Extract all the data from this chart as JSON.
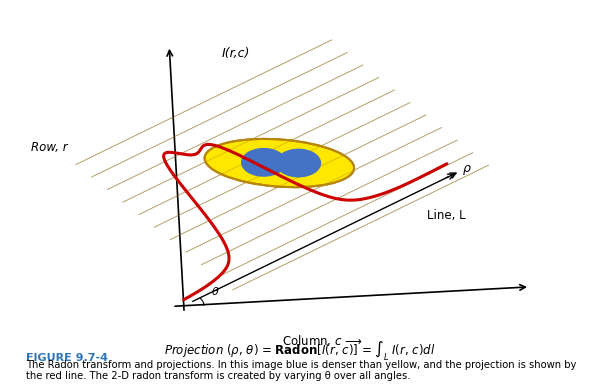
{
  "title": "FIGURE 9.7-4",
  "figure_label": "I(r,c)",
  "row_label": "Row, r",
  "col_label": "Column, c —►",
  "line_label": "Line, L",
  "rho_label": "ρ",
  "theta_label": "θ",
  "caption_title": "FIGURE 9.7-4",
  "caption_text": "The Radon transform and projections. In this image blue is denser than yellow, and the projection is shown by\nthe red line. The 2-D radon transform is created by varying θ over all angles.",
  "formula": "Projection (ρ, θ) = Radon[I(r, c)] = ∫ₗ I(r, c)dl",
  "ellipse_color": "#FFE800",
  "ellipse_edge": "#B8860B",
  "circle1_color": "#4472C4",
  "circle2_color": "#4472C4",
  "projection_color": "#CC0000",
  "axis_color": "#000000",
  "stripe_color": "#888888",
  "background": "#FFFFFF",
  "caption_title_color": "#2E75B6",
  "text_color": "#000000"
}
